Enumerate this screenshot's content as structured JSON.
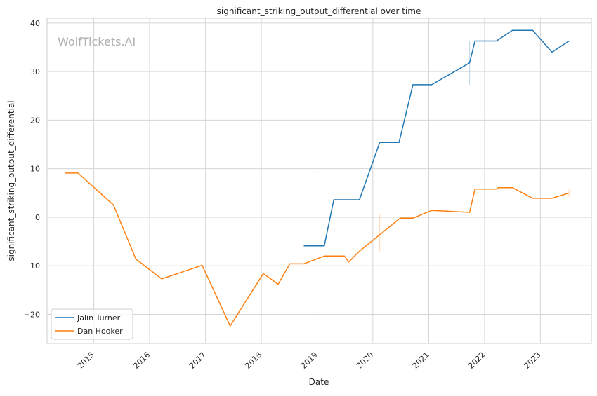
{
  "chart_data": {
    "type": "line",
    "title": "significant_striking_output_differential over time",
    "xlabel": "Date",
    "ylabel": "significant_striking_output_differential",
    "watermark": "WolfTickets.AI",
    "xlim": [
      "2014-03-01",
      "2023-12-01"
    ],
    "ylim": [
      -26,
      41
    ],
    "x_ticks": [
      "2015-01-01",
      "2016-01-01",
      "2017-01-01",
      "2018-01-01",
      "2019-01-01",
      "2020-01-01",
      "2021-01-01",
      "2022-01-01",
      "2023-01-01"
    ],
    "x_tick_labels": [
      "2015",
      "2016",
      "2017",
      "2018",
      "2019",
      "2020",
      "2021",
      "2022",
      "2023"
    ],
    "y_ticks": [
      -20,
      -10,
      0,
      10,
      20,
      30,
      40
    ],
    "y_tick_labels": [
      "−20",
      "−10",
      "0",
      "10",
      "20",
      "30",
      "40"
    ],
    "grid": true,
    "legend_position": "lower-left",
    "series": [
      {
        "name": "Jalin Turner",
        "color": "#1f77b4",
        "points": [
          [
            "2018-10-06",
            -5.9
          ],
          [
            "2019-02-17",
            -5.9
          ],
          [
            "2019-04-20",
            3.6
          ],
          [
            "2019-10-05",
            3.6
          ],
          [
            "2020-02-15",
            15.4
          ],
          [
            "2020-06-20",
            15.4
          ],
          [
            "2020-09-19",
            27.3
          ],
          [
            "2021-01-20",
            27.3
          ],
          [
            "2021-09-25",
            31.8
          ],
          [
            "2021-10-30",
            36.3
          ],
          [
            "2022-03-19",
            36.3
          ],
          [
            "2022-07-02",
            38.5
          ],
          [
            "2022-11-12",
            38.5
          ],
          [
            "2023-03-18",
            34.0
          ],
          [
            "2023-07-08",
            36.3
          ]
        ]
      },
      {
        "name": "Dan Hooker",
        "color": "#ff7f0e",
        "points": [
          [
            "2014-06-28",
            9.1
          ],
          [
            "2014-09-20",
            9.1
          ],
          [
            "2015-05-10",
            2.5
          ],
          [
            "2015-10-03",
            -8.6
          ],
          [
            "2016-03-20",
            -12.7
          ],
          [
            "2016-12-10",
            -9.9
          ],
          [
            "2017-06-11",
            -22.4
          ],
          [
            "2018-01-14",
            -11.6
          ],
          [
            "2018-04-21",
            -13.8
          ],
          [
            "2018-07-07",
            -9.6
          ],
          [
            "2018-10-06",
            -9.6
          ],
          [
            "2019-02-17",
            -8.0
          ],
          [
            "2019-06-29",
            -8.0
          ],
          [
            "2019-07-27",
            -9.2
          ],
          [
            "2019-10-05",
            -7.0
          ],
          [
            "2020-06-27",
            -0.2
          ],
          [
            "2020-09-19",
            -0.2
          ],
          [
            "2021-01-20",
            1.4
          ],
          [
            "2021-09-25",
            1.0
          ],
          [
            "2021-10-30",
            5.8
          ],
          [
            "2022-03-19",
            5.8
          ],
          [
            "2022-04-01",
            6.1
          ],
          [
            "2022-07-02",
            6.1
          ],
          [
            "2022-11-12",
            3.9
          ],
          [
            "2023-03-18",
            3.9
          ],
          [
            "2023-07-08",
            5.0
          ]
        ]
      }
    ],
    "error_bars": [
      {
        "series": "Jalin Turner",
        "x": "2021-09-25",
        "low": 27.3,
        "high": 36.3
      },
      {
        "series": "Dan Hooker",
        "x": "2020-02-15",
        "low": -7.0,
        "high": 0.7
      },
      {
        "series": "Dan Hooker",
        "x": "2023-07-08",
        "low": 4.2,
        "high": 5.8
      }
    ]
  }
}
